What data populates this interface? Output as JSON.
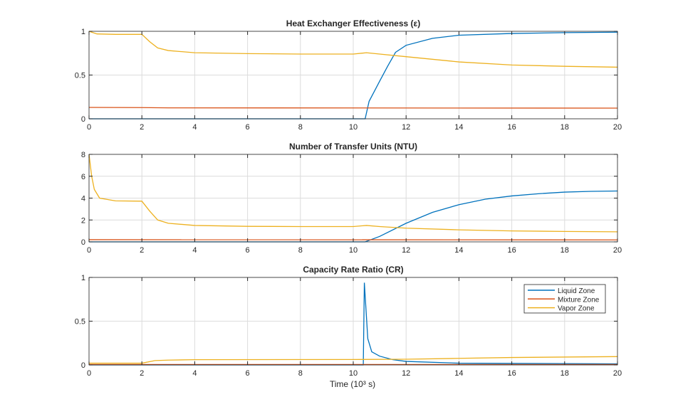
{
  "chart_data": [
    {
      "type": "line",
      "title": "Heat  Exchanger  Effectiveness  (ε)",
      "xlim": [
        0,
        20
      ],
      "ylim": [
        0,
        1
      ],
      "xticks": [
        0,
        2,
        4,
        6,
        8,
        10,
        12,
        14,
        16,
        18,
        20
      ],
      "yticks": [
        0,
        0.5,
        1
      ],
      "yticklabels": [
        "0",
        "0.5",
        "1"
      ],
      "grid": true,
      "series": [
        {
          "key": "liquid",
          "x": [
            0,
            10.45,
            10.6,
            11,
            11.3,
            11.6,
            12,
            13,
            14,
            16,
            18,
            20
          ],
          "y": [
            0,
            0,
            0.2,
            0.43,
            0.6,
            0.76,
            0.84,
            0.92,
            0.955,
            0.975,
            0.985,
            0.99
          ]
        },
        {
          "key": "mixture",
          "x": [
            0,
            2,
            3,
            20
          ],
          "y": [
            0.13,
            0.128,
            0.125,
            0.122
          ]
        },
        {
          "key": "vapor",
          "x": [
            0,
            0.3,
            1,
            2,
            2.3,
            2.6,
            3,
            4,
            6,
            8,
            10,
            10.5,
            11,
            12,
            14,
            16,
            18,
            20
          ],
          "y": [
            1,
            0.97,
            0.965,
            0.965,
            0.88,
            0.81,
            0.78,
            0.755,
            0.745,
            0.74,
            0.74,
            0.755,
            0.74,
            0.71,
            0.65,
            0.615,
            0.6,
            0.59
          ]
        }
      ]
    },
    {
      "type": "line",
      "title": "Number of Transfer Units (NTU)",
      "xlim": [
        0,
        20
      ],
      "ylim": [
        0,
        8
      ],
      "xticks": [
        0,
        2,
        4,
        6,
        8,
        10,
        12,
        14,
        16,
        18,
        20
      ],
      "yticks": [
        0,
        2,
        4,
        6,
        8
      ],
      "yticklabels": [
        "0",
        "2",
        "4",
        "6",
        "8"
      ],
      "grid": true,
      "series": [
        {
          "key": "liquid",
          "x": [
            0,
            10.45,
            11,
            12,
            13,
            14,
            15,
            16,
            17,
            18,
            19,
            20
          ],
          "y": [
            0,
            0,
            0.5,
            1.7,
            2.7,
            3.4,
            3.9,
            4.2,
            4.4,
            4.55,
            4.62,
            4.65
          ]
        },
        {
          "key": "mixture",
          "x": [
            0,
            20
          ],
          "y": [
            0.2,
            0.18
          ]
        },
        {
          "key": "vapor",
          "x": [
            0,
            0.1,
            0.2,
            0.4,
            1,
            2,
            2.3,
            2.6,
            3,
            4,
            6,
            8,
            10,
            10.5,
            11,
            12,
            14,
            16,
            18,
            20
          ],
          "y": [
            8,
            6,
            4.8,
            4,
            3.75,
            3.72,
            2.8,
            2,
            1.7,
            1.5,
            1.42,
            1.4,
            1.4,
            1.5,
            1.4,
            1.25,
            1.1,
            1,
            0.95,
            0.92
          ]
        }
      ]
    },
    {
      "type": "line",
      "title": "Capacity Rate Ratio (CR)",
      "xlabel": "Time  (10³  s)",
      "xlim": [
        0,
        20
      ],
      "ylim": [
        0,
        1
      ],
      "xticks": [
        0,
        2,
        4,
        6,
        8,
        10,
        12,
        14,
        16,
        18,
        20
      ],
      "yticks": [
        0,
        0.5,
        1
      ],
      "yticklabels": [
        "0",
        "0.5",
        "1"
      ],
      "grid": true,
      "legend": "top-right",
      "series": [
        {
          "key": "liquid",
          "name": "Liquid Zone",
          "x": [
            0,
            10.38,
            10.42,
            10.55,
            10.7,
            11,
            11.5,
            12,
            14,
            20
          ],
          "y": [
            0,
            0,
            0.94,
            0.3,
            0.15,
            0.1,
            0.06,
            0.04,
            0.02,
            0.012
          ]
        },
        {
          "key": "mixture",
          "name": "Mixture Zone",
          "x": [
            0,
            20
          ],
          "y": [
            0.005,
            0.005
          ]
        },
        {
          "key": "vapor",
          "name": "Vapor Zone",
          "x": [
            0,
            2,
            2.5,
            3,
            4,
            10,
            12,
            14,
            16,
            20
          ],
          "y": [
            0.02,
            0.02,
            0.05,
            0.055,
            0.06,
            0.062,
            0.065,
            0.075,
            0.085,
            0.095
          ]
        }
      ]
    }
  ],
  "colors": {
    "liquid": "#0072BD",
    "mixture": "#D95319",
    "vapor": "#EDB120"
  }
}
